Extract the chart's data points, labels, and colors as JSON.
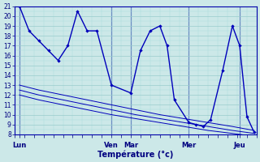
{
  "xlabel": "Température (°c)",
  "bg_color": "#cce8e8",
  "line_color": "#0000bb",
  "grid_major_color": "#99cccc",
  "grid_minor_color": "#aadddd",
  "xlim": [
    0,
    100
  ],
  "ylim": [
    8,
    21
  ],
  "yticks": [
    8,
    9,
    10,
    11,
    12,
    13,
    14,
    15,
    16,
    17,
    18,
    19,
    20,
    21
  ],
  "day_positions": [
    2,
    40,
    48,
    72,
    93
  ],
  "day_labels": [
    "Lun",
    "Ven",
    "Mar",
    "Mer",
    "Jeu"
  ],
  "vline_positions": [
    2,
    40,
    48,
    72,
    93
  ],
  "main_x": [
    2,
    6,
    10,
    14,
    18,
    22,
    26,
    30,
    34,
    40,
    48,
    52,
    56,
    60,
    63,
    66,
    72,
    75,
    78,
    81,
    86,
    90,
    93,
    96,
    99
  ],
  "main_y": [
    21.0,
    18.5,
    17.5,
    16.5,
    15.5,
    17.0,
    20.5,
    18.5,
    18.5,
    13.0,
    12.2,
    16.5,
    18.5,
    19.0,
    17.0,
    11.5,
    9.2,
    9.0,
    8.8,
    9.5,
    14.5,
    19.0,
    17.0,
    9.8,
    8.2
  ],
  "band1_x": [
    2,
    10,
    20,
    30,
    40,
    50,
    60,
    70,
    80,
    90,
    99
  ],
  "band1_y": [
    13.0,
    12.5,
    12.0,
    11.5,
    11.0,
    10.5,
    10.0,
    9.6,
    9.2,
    8.8,
    8.4
  ],
  "band2_x": [
    2,
    10,
    20,
    30,
    40,
    50,
    60,
    70,
    80,
    90,
    99
  ],
  "band2_y": [
    12.5,
    12.0,
    11.5,
    11.0,
    10.5,
    10.0,
    9.6,
    9.2,
    8.8,
    8.4,
    8.1
  ],
  "band3_x": [
    2,
    10,
    20,
    30,
    40,
    50,
    60,
    70,
    80,
    90,
    99
  ],
  "band3_y": [
    12.0,
    11.5,
    11.0,
    10.5,
    10.0,
    9.6,
    9.2,
    8.8,
    8.4,
    8.1,
    7.8
  ]
}
